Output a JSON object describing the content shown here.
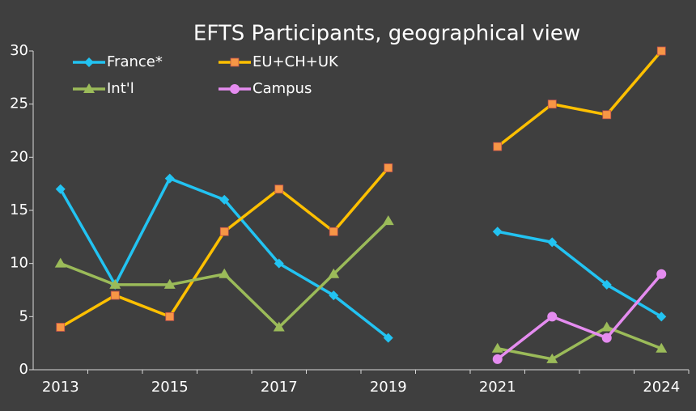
{
  "chart_data": {
    "type": "line",
    "title": "EFTS Participants, geographical view",
    "categories": [
      "2013",
      null,
      "2015",
      null,
      "2017",
      null,
      "2019",
      null,
      "2021",
      null,
      null,
      "2024"
    ],
    "series": [
      {
        "name": "France*",
        "color": "#22c3f2",
        "marker": "diamond",
        "marker_color": "#22c3f2",
        "values": [
          17,
          8,
          18,
          16,
          10,
          7,
          3,
          null,
          13,
          12,
          8,
          5
        ]
      },
      {
        "name": "EU+CH+UK",
        "color": "#ffc000",
        "marker": "square",
        "marker_color": "#f79646",
        "values": [
          4,
          7,
          5,
          13,
          17,
          13,
          19,
          null,
          21,
          25,
          24,
          30
        ]
      },
      {
        "name": "Int'l",
        "color": "#9bbb59",
        "marker": "triangle",
        "marker_color": "#9bbb59",
        "values": [
          10,
          8,
          8,
          9,
          4,
          9,
          14,
          null,
          2,
          1,
          4,
          2
        ]
      },
      {
        "name": "Campus",
        "color": "#e58cf0",
        "marker": "circle",
        "marker_color": "#e58cf0",
        "values": [
          null,
          null,
          null,
          null,
          null,
          null,
          null,
          null,
          1,
          5,
          3,
          9
        ]
      }
    ],
    "ylim": [
      0,
      30
    ],
    "yticks": [
      0,
      5,
      10,
      15,
      20,
      25,
      30
    ],
    "grid": false,
    "legend": "top-left"
  }
}
